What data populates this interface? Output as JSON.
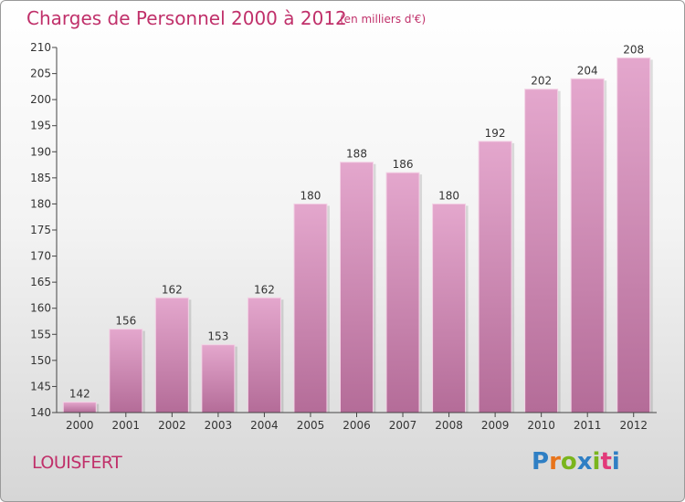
{
  "title": "Charges de Personnel 2000 à 2012",
  "subtitle": "(en milliers d'€)",
  "town": "LOUISFERT",
  "brand": {
    "letters": [
      "P",
      "r",
      "o",
      "x",
      "i",
      "t",
      "i"
    ],
    "colors": [
      "#2f7fc4",
      "#e8741b",
      "#7ab51d",
      "#2f7fc4",
      "#7ab51d",
      "#e23a7a",
      "#2f7fc4"
    ]
  },
  "colors": {
    "accent": "#c0306a",
    "bar_top": "#e4a7cd",
    "bar_bottom": "#b46c98"
  },
  "chart_data": {
    "type": "bar",
    "categories": [
      "2000",
      "2001",
      "2002",
      "2003",
      "2004",
      "2005",
      "2006",
      "2007",
      "2008",
      "2009",
      "2010",
      "2011",
      "2012"
    ],
    "values": [
      142,
      156,
      162,
      153,
      162,
      180,
      188,
      186,
      180,
      192,
      202,
      204,
      208
    ],
    "title": "Charges de Personnel 2000 à 2012",
    "xlabel": "",
    "ylabel": "",
    "ylim": [
      140,
      210
    ],
    "yticks": [
      140,
      145,
      150,
      155,
      160,
      165,
      170,
      175,
      180,
      185,
      190,
      195,
      200,
      205,
      210
    ],
    "grid": false,
    "legend": "none"
  }
}
